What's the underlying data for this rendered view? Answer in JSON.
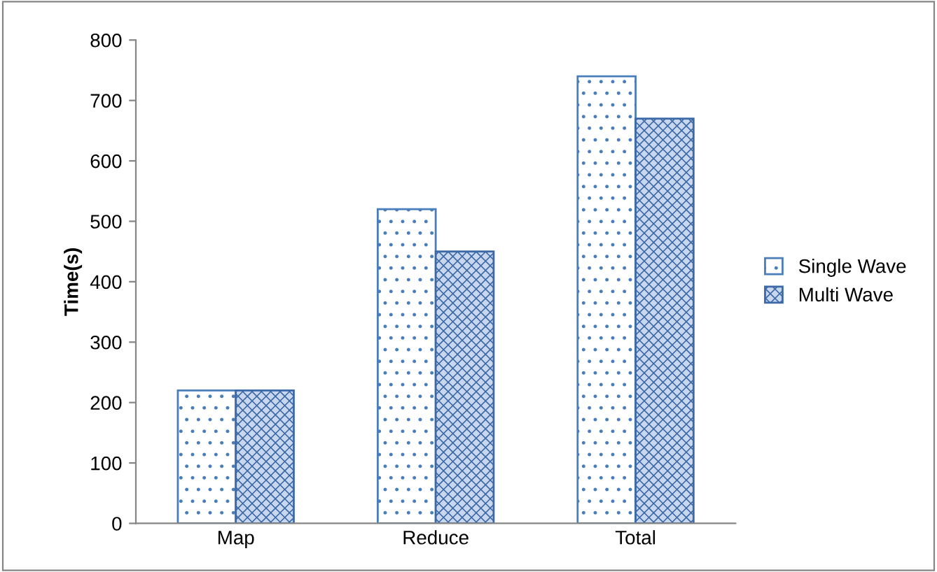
{
  "chart_data": {
    "type": "bar",
    "ylabel": "Time(s)",
    "categories": [
      "Map",
      "Reduce",
      "Total"
    ],
    "series": [
      {
        "name": "Single Wave",
        "color": "#4a7ebb",
        "values": [
          220,
          520,
          740
        ]
      },
      {
        "name": "Multi Wave",
        "color": "#3c6aa8",
        "values": [
          220,
          450,
          670
        ]
      }
    ],
    "ylim": [
      0,
      800
    ],
    "yticks": [
      0,
      100,
      200,
      300,
      400,
      500,
      600,
      700,
      800
    ],
    "legend": "right"
  }
}
